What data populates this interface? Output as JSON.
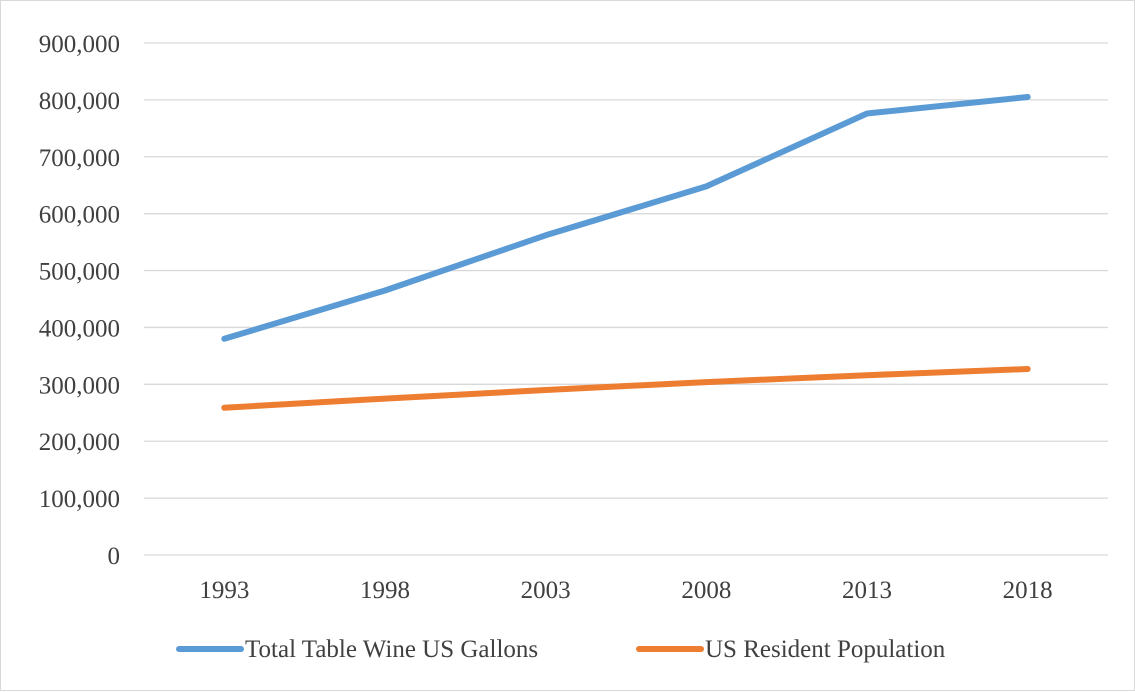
{
  "chart_data": {
    "type": "line",
    "title": "",
    "xlabel": "",
    "ylabel": "",
    "categories": [
      "1993",
      "1998",
      "2003",
      "2008",
      "2013",
      "2018"
    ],
    "ylim": [
      0,
      900000
    ],
    "yticks": [
      0,
      100000,
      200000,
      300000,
      400000,
      500000,
      600000,
      700000,
      800000,
      900000
    ],
    "ytick_labels": [
      "0",
      "100,000",
      "200,000",
      "300,000",
      "400,000",
      "500,000",
      "600,000",
      "700,000",
      "800,000",
      "900,000"
    ],
    "grid": "horizontal",
    "legend_position": "bottom",
    "series": [
      {
        "name": "Total Table Wine US Gallons",
        "color": "#5b9bd5",
        "values": [
          380000,
          465000,
          562000,
          648000,
          776000,
          805000
        ]
      },
      {
        "name": "US Resident Population",
        "color": "#ed7d31",
        "values": [
          259000,
          275000,
          290000,
          304000,
          316000,
          327000
        ]
      }
    ]
  }
}
